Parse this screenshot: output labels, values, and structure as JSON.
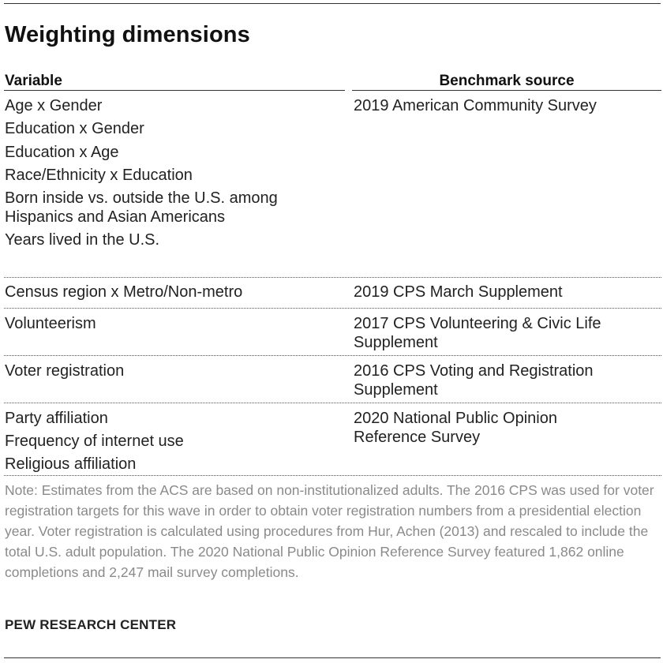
{
  "title": "Weighting dimensions",
  "headers": {
    "variable": "Variable",
    "benchmark": "Benchmark source"
  },
  "groups": [
    {
      "variables": [
        "Age x Gender",
        "Education x Gender",
        "Education x Age",
        "Race/Ethnicity x Education",
        "Born inside vs. outside the U.S. among Hispanics and Asian Americans",
        "Years lived in the U.S."
      ],
      "source": "2019 American Community Survey"
    },
    {
      "variables": [
        "Census region x Metro/Non-metro"
      ],
      "source": "2019 CPS March Supplement"
    },
    {
      "variables": [
        "Volunteerism"
      ],
      "source": "2017 CPS Volunteering & Civic Life Supplement"
    },
    {
      "variables": [
        "Voter registration"
      ],
      "source": "2016 CPS Voting and Registration Supplement"
    },
    {
      "variables": [
        "Party affiliation",
        "Frequency of internet use",
        "Religious affiliation"
      ],
      "source": "2020 National Public Opinion Reference Survey"
    }
  ],
  "note": "Note: Estimates from the ACS are based on non-institutionalized adults.  The 2016 CPS was used for voter registration targets for this wave in order to obtain voter registration numbers from a presidential election year. Voter registration is calculated using procedures from Hur, Achen (2013) and rescaled to include the total U.S. adult population. The 2020 National Public Opinion Reference Survey featured 1,862 online completions and 2,247 mail survey completions.",
  "footer": "PEW RESEARCH CENTER"
}
